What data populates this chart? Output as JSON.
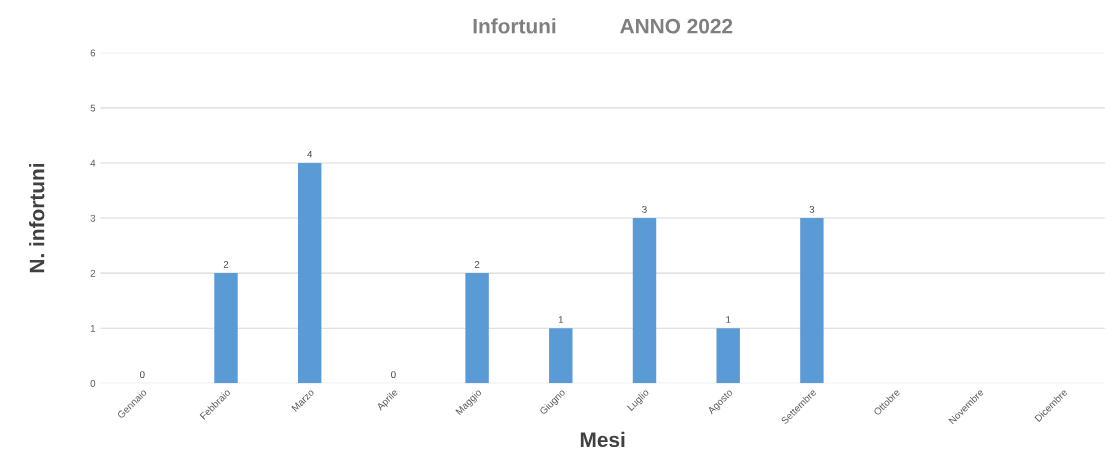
{
  "chart_data": {
    "type": "bar",
    "title": "Infortuni           ANNO 2022",
    "xlabel": "Mesi",
    "ylabel": "N. infortuni",
    "categories": [
      "Gennaio",
      "Febbraio",
      "Marzo",
      "Aprile",
      "Maggio",
      "Giugno",
      "Luglio",
      "Agosto",
      "Settembre",
      "Ottobre",
      "Novembre",
      "Dicembre"
    ],
    "values": [
      0,
      2,
      4,
      0,
      2,
      1,
      3,
      1,
      3,
      null,
      null,
      null
    ],
    "color": "#5b9bd5",
    "ylim": [
      0,
      6
    ],
    "yticks": [
      0,
      1,
      2,
      3,
      4,
      5,
      6
    ],
    "grid": "y",
    "data_labels": true,
    "legend": false
  }
}
